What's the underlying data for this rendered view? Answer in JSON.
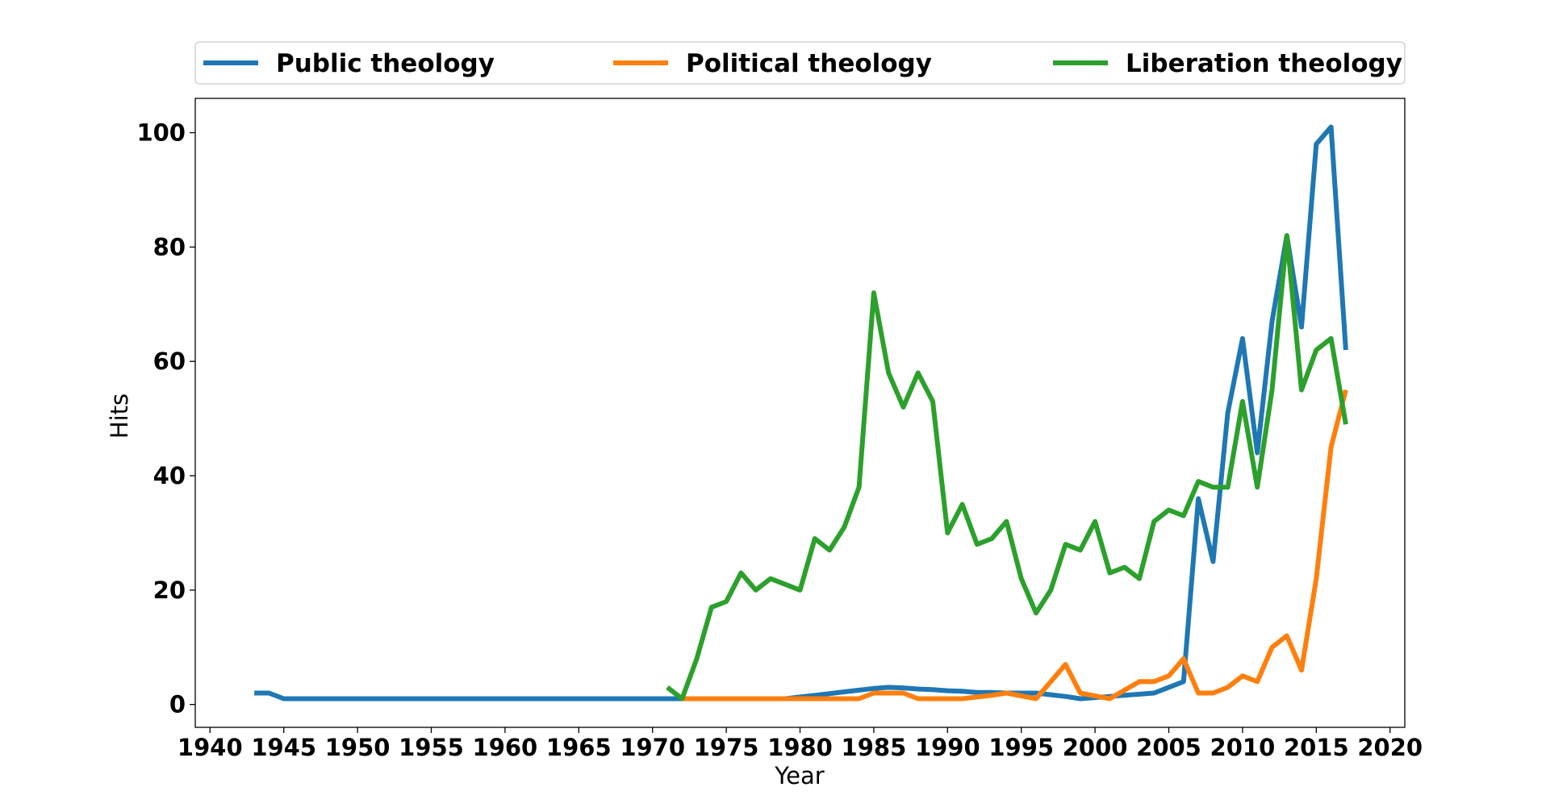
{
  "chart_data": {
    "type": "line",
    "xlabel": "Year",
    "ylabel": "Hits",
    "xlim": [
      1939,
      2021
    ],
    "ylim": [
      -4,
      106
    ],
    "xticks": [
      1940,
      1945,
      1950,
      1955,
      1960,
      1965,
      1970,
      1975,
      1980,
      1985,
      1990,
      1995,
      2000,
      2005,
      2010,
      2015,
      2020
    ],
    "yticks": [
      0,
      20,
      40,
      60,
      80,
      100
    ],
    "grid": false,
    "legend_position": "top",
    "series": [
      {
        "name": "Public theology",
        "color": "#1f77b4",
        "x": [
          1943,
          1944,
          1945,
          1946,
          1947,
          1948,
          1949,
          1950,
          1951,
          1952,
          1953,
          1954,
          1955,
          1956,
          1957,
          1958,
          1959,
          1960,
          1961,
          1962,
          1963,
          1964,
          1965,
          1966,
          1967,
          1968,
          1969,
          1970,
          1971,
          1972,
          1973,
          1974,
          1975,
          1976,
          1977,
          1978,
          1979,
          1980,
          1981,
          1982,
          1983,
          1984,
          1985,
          1986,
          1987,
          1988,
          1989,
          1990,
          1991,
          1992,
          1993,
          1994,
          1995,
          1996,
          1997,
          1998,
          1999,
          2000,
          2001,
          2002,
          2003,
          2004,
          2005,
          2006,
          2007,
          2008,
          2009,
          2010,
          2011,
          2012,
          2013,
          2014,
          2015,
          2016,
          2017
        ],
        "y": [
          2,
          2,
          1,
          1,
          1,
          1,
          1,
          1,
          1,
          1,
          1,
          1,
          1,
          1,
          1,
          1,
          1,
          1,
          1,
          1,
          1,
          1,
          1,
          1,
          1,
          1,
          1,
          1,
          1,
          1,
          1,
          1,
          1,
          1,
          1,
          1,
          1,
          1.3,
          1.6,
          1.9,
          2.2,
          2.5,
          2.8,
          3,
          2.9,
          2.7,
          2.6,
          2.4,
          2.3,
          2.1,
          2.1,
          2,
          2,
          2,
          1.7,
          1.4,
          1,
          1.2,
          1.4,
          1.6,
          1.8,
          2,
          3,
          4,
          36,
          25,
          51,
          64,
          44,
          67,
          82,
          66,
          98,
          101,
          62
        ]
      },
      {
        "name": "Political theology",
        "color": "#ff7f0e",
        "x": [
          1972,
          1973,
          1974,
          1975,
          1976,
          1977,
          1978,
          1979,
          1980,
          1981,
          1982,
          1983,
          1984,
          1985,
          1986,
          1987,
          1988,
          1989,
          1990,
          1991,
          1992,
          1993,
          1994,
          1995,
          1996,
          1997,
          1998,
          1999,
          2000,
          2001,
          2002,
          2003,
          2004,
          2005,
          2006,
          2007,
          2008,
          2009,
          2010,
          2011,
          2012,
          2013,
          2014,
          2015,
          2016,
          2017
        ],
        "y": [
          1,
          1,
          1,
          1,
          1,
          1,
          1,
          1,
          1,
          1,
          1,
          1,
          1,
          2,
          2,
          2,
          1,
          1,
          1,
          1,
          1.3,
          1.6,
          2,
          1.5,
          1,
          4,
          7,
          2,
          1.5,
          1,
          2.5,
          4,
          4,
          5,
          8,
          2,
          2,
          3,
          5,
          4,
          10,
          12,
          6,
          22,
          45,
          55
        ]
      },
      {
        "name": "Liberation theology",
        "color": "#2ca02c",
        "x": [
          1971,
          1972,
          1973,
          1974,
          1975,
          1976,
          1977,
          1978,
          1979,
          1980,
          1981,
          1982,
          1983,
          1984,
          1985,
          1986,
          1987,
          1988,
          1989,
          1990,
          1991,
          1992,
          1993,
          1994,
          1995,
          1996,
          1997,
          1998,
          1999,
          2000,
          2001,
          2002,
          2003,
          2004,
          2005,
          2006,
          2007,
          2008,
          2009,
          2010,
          2011,
          2012,
          2013,
          2014,
          2015,
          2016,
          2017
        ],
        "y": [
          3,
          1,
          8,
          17,
          18,
          23,
          20,
          22,
          21,
          20,
          29,
          27,
          31,
          38,
          72,
          58,
          52,
          58,
          53,
          30,
          35,
          28,
          29,
          32,
          22,
          16,
          20,
          28,
          27,
          32,
          23,
          24,
          22,
          32,
          34,
          33,
          39,
          38,
          38,
          53,
          38,
          55,
          82,
          55,
          62,
          64,
          49
        ]
      }
    ]
  }
}
